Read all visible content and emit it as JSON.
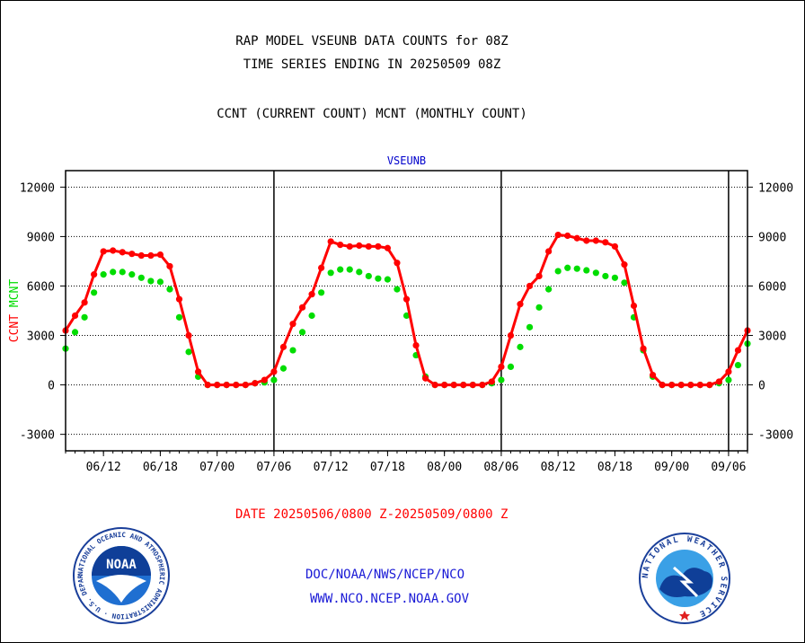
{
  "header": {
    "title_line1": "RAP MODEL VSEUNB DATA COUNTS for 08Z",
    "title_line2": "TIME SERIES ENDING IN 20250509 08Z",
    "subtitle": "CCNT (CURRENT COUNT) MCNT (MONTHLY COUNT)"
  },
  "footer": {
    "date_range": "DATE 20250506/0800 Z-20250509/0800 Z",
    "org_line": "DOC/NOAA/NWS/NCEP/NCO",
    "url_line": "WWW.NCO.NCEP.NOAA.GOV",
    "noaa_logo_text": "NOAA",
    "noaa_ring_text": "NATIONAL OCEANIC AND ATMOSPHERIC ADMINISTRATION · U.S. DEPARTMENT OF COMMERCE",
    "nws_ring_text": "NATIONAL WEATHER SERVICE"
  },
  "colors": {
    "ccnt": "#ff0000",
    "mcnt": "#00dd00",
    "axis": "#000000",
    "station_title": "#0000cc",
    "footer_blue": "#1a1ad6"
  },
  "chart_data": {
    "type": "line",
    "title": "VSEUNB",
    "ylabel_left": [
      "CCNT",
      "MCNT"
    ],
    "y_ticks": [
      -3000,
      0,
      3000,
      6000,
      9000,
      12000
    ],
    "y_tick_labels": [
      "-3000",
      "0",
      "3000",
      "6000",
      "9000",
      "12000"
    ],
    "ylim": [
      -4000,
      13000
    ],
    "x_tick_labels": [
      "06/12",
      "06/18",
      "07/00",
      "07/06",
      "07/12",
      "07/18",
      "08/00",
      "08/06",
      "08/12",
      "08/18",
      "09/00",
      "09/06"
    ],
    "x_tick_hours": [
      4,
      10,
      16,
      22,
      28,
      34,
      40,
      46,
      52,
      58,
      64,
      70
    ],
    "day_boundaries_hours": [
      22,
      46,
      70
    ],
    "xlim_hours": [
      0,
      72
    ],
    "grid": "horizontal dotted",
    "series": [
      {
        "name": "CCNT",
        "color": "#ff0000",
        "x_hours": [
          0,
          1,
          2,
          3,
          4,
          5,
          6,
          7,
          8,
          9,
          10,
          11,
          12,
          13,
          14,
          15,
          16,
          17,
          18,
          19,
          20,
          21,
          22,
          23,
          24,
          25,
          26,
          27,
          28,
          29,
          30,
          31,
          32,
          33,
          34,
          35,
          36,
          37,
          38,
          39,
          40,
          41,
          42,
          43,
          44,
          45,
          46,
          47,
          48,
          49,
          50,
          51,
          52,
          53,
          54,
          55,
          56,
          57,
          58,
          59,
          60,
          61,
          62,
          63,
          64,
          65,
          66,
          67,
          68,
          69,
          70,
          71,
          72
        ],
        "values": [
          3300,
          4200,
          5000,
          6700,
          8100,
          8150,
          8050,
          7950,
          7850,
          7850,
          7900,
          7200,
          5200,
          3000,
          800,
          0,
          0,
          0,
          0,
          0,
          100,
          300,
          800,
          2300,
          3700,
          4700,
          5500,
          7100,
          8700,
          8500,
          8400,
          8450,
          8400,
          8400,
          8300,
          7400,
          5200,
          2400,
          400,
          0,
          0,
          0,
          0,
          0,
          0,
          200,
          1100,
          3000,
          4900,
          6000,
          6600,
          8100,
          9100,
          9050,
          8900,
          8750,
          8750,
          8650,
          8400,
          7300,
          4800,
          2200,
          600,
          0,
          0,
          0,
          0,
          0,
          0,
          200,
          800,
          2100,
          3300
        ]
      },
      {
        "name": "MCNT",
        "color": "#00dd00",
        "x_hours": [
          0,
          1,
          2,
          3,
          4,
          5,
          6,
          7,
          8,
          9,
          10,
          11,
          12,
          13,
          14,
          15,
          16,
          17,
          18,
          19,
          20,
          21,
          22,
          23,
          24,
          25,
          26,
          27,
          28,
          29,
          30,
          31,
          32,
          33,
          34,
          35,
          36,
          37,
          38,
          39,
          40,
          41,
          42,
          43,
          44,
          45,
          46,
          47,
          48,
          49,
          50,
          51,
          52,
          53,
          54,
          55,
          56,
          57,
          58,
          59,
          60,
          61,
          62,
          63,
          64,
          65,
          66,
          67,
          68,
          69,
          70,
          71,
          72
        ],
        "values": [
          2200,
          3200,
          4100,
          5600,
          6700,
          6850,
          6850,
          6700,
          6500,
          6300,
          6250,
          5800,
          4100,
          2000,
          500,
          0,
          0,
          0,
          0,
          0,
          100,
          150,
          300,
          1000,
          2100,
          3200,
          4200,
          5600,
          6800,
          7000,
          7000,
          6850,
          6600,
          6450,
          6400,
          5800,
          4200,
          1800,
          500,
          0,
          0,
          0,
          0,
          0,
          0,
          100,
          300,
          1100,
          2300,
          3500,
          4700,
          5800,
          6900,
          7100,
          7050,
          6950,
          6800,
          6600,
          6500,
          6200,
          4100,
          2100,
          500,
          0,
          0,
          0,
          0,
          0,
          0,
          100,
          300,
          1200,
          2500
        ]
      }
    ]
  }
}
